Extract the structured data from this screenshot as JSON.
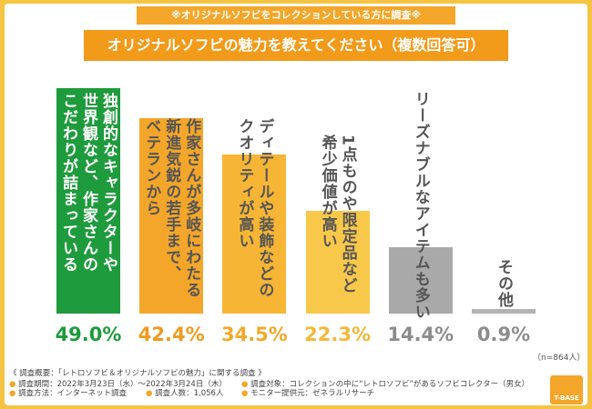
{
  "chart_data": {
    "type": "bar",
    "banner": "※オリジナルソフビをコレクションしている方に調査※",
    "title": "オリジナルソフビの魅力を教えてください（複数回答可）",
    "categories": [
      "独創的なキャラクターや\n世界観など、作家さんの\nこだわりが詰まっている",
      "作家さんが多岐にわたる\n新進気鋭の若手まで、\nベテランから",
      "ディテールや装飾などの\nクオリティが高い",
      "1点ものや限定品など\n希少価値が高い",
      "リーズナブルなアイテムも多い",
      "その他"
    ],
    "values": [
      49.0,
      42.4,
      34.5,
      22.3,
      14.4,
      0.9
    ],
    "value_labels": [
      "49.0%",
      "42.4%",
      "34.5%",
      "22.3%",
      "14.4%",
      "0.9%"
    ],
    "colors": [
      "#1e9b3c",
      "#f4a62a",
      "#f6b535",
      "#f8c84a",
      "#a9a9a9",
      "#b3b3b3"
    ],
    "label_colors": [
      "#1e9b3c",
      "#f09a1e",
      "#f3a92a",
      "#f4b73a",
      "#8c8c8c",
      "#8c8c8c"
    ],
    "sample_note": "（n=864人）",
    "footer": {
      "heading": "《 調査概要：「レトロソフビ＆オリジナルソフビの魅力」に関する調査 》",
      "items": [
        "調査期間：2022年3月23日（水）〜2022年3月24日（木）",
        "調査方法：インターネット調査",
        "調査人数：1,056人",
        "調査対象：コレクションの中に“レトロソフビ”があるソフビコレクター（男女）",
        "モニター提供元：ゼネラルリサーチ"
      ]
    },
    "logo": "T-BASE"
  }
}
